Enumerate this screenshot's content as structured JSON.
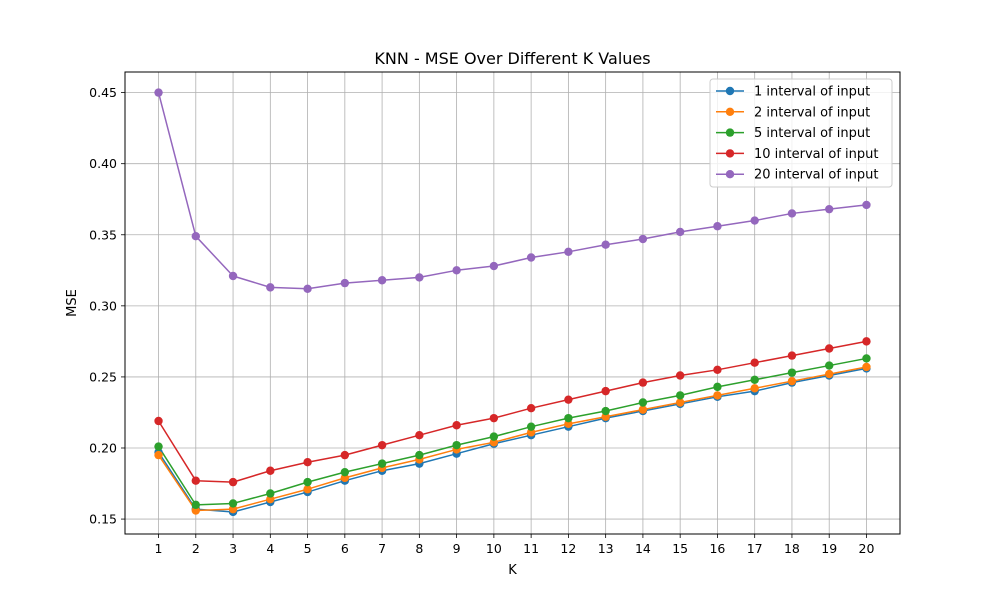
{
  "chart_data": {
    "type": "line",
    "title": "KNN - MSE Over Different K Values",
    "xlabel": "K",
    "ylabel": "MSE",
    "x": [
      1,
      2,
      3,
      4,
      5,
      6,
      7,
      8,
      9,
      10,
      11,
      12,
      13,
      14,
      15,
      16,
      17,
      18,
      19,
      20
    ],
    "xlim": [
      0.1,
      20.9
    ],
    "ylim": [
      0.1395,
      0.4645
    ],
    "yticks": [
      0.15,
      0.2,
      0.25,
      0.3,
      0.35,
      0.4,
      0.45
    ],
    "ytick_labels": [
      "0.15",
      "0.20",
      "0.25",
      "0.30",
      "0.35",
      "0.40",
      "0.45"
    ],
    "grid": true,
    "legend_position": "top-right",
    "marker": "circle",
    "series": [
      {
        "name": "1 interval of input",
        "color": "#1f77b4",
        "values": [
          0.197,
          0.157,
          0.155,
          0.162,
          0.169,
          0.177,
          0.184,
          0.189,
          0.196,
          0.203,
          0.209,
          0.215,
          0.221,
          0.226,
          0.231,
          0.236,
          0.24,
          0.246,
          0.251,
          0.256
        ]
      },
      {
        "name": "2 interval of input",
        "color": "#ff7f0e",
        "values": [
          0.195,
          0.156,
          0.157,
          0.164,
          0.171,
          0.179,
          0.186,
          0.192,
          0.199,
          0.204,
          0.211,
          0.217,
          0.222,
          0.227,
          0.232,
          0.237,
          0.242,
          0.247,
          0.252,
          0.257
        ]
      },
      {
        "name": "5 interval of input",
        "color": "#2ca02c",
        "values": [
          0.201,
          0.16,
          0.161,
          0.168,
          0.176,
          0.183,
          0.189,
          0.195,
          0.202,
          0.208,
          0.215,
          0.221,
          0.226,
          0.232,
          0.237,
          0.243,
          0.248,
          0.253,
          0.258,
          0.263
        ]
      },
      {
        "name": "10 interval of input",
        "color": "#d62728",
        "values": [
          0.219,
          0.177,
          0.176,
          0.184,
          0.19,
          0.195,
          0.202,
          0.209,
          0.216,
          0.221,
          0.228,
          0.234,
          0.24,
          0.246,
          0.251,
          0.255,
          0.26,
          0.265,
          0.27,
          0.275
        ]
      },
      {
        "name": "20 interval of input",
        "color": "#9467bd",
        "values": [
          0.45,
          0.349,
          0.321,
          0.313,
          0.312,
          0.316,
          0.318,
          0.32,
          0.325,
          0.328,
          0.334,
          0.338,
          0.343,
          0.347,
          0.352,
          0.356,
          0.36,
          0.365,
          0.368,
          0.371
        ]
      }
    ]
  }
}
